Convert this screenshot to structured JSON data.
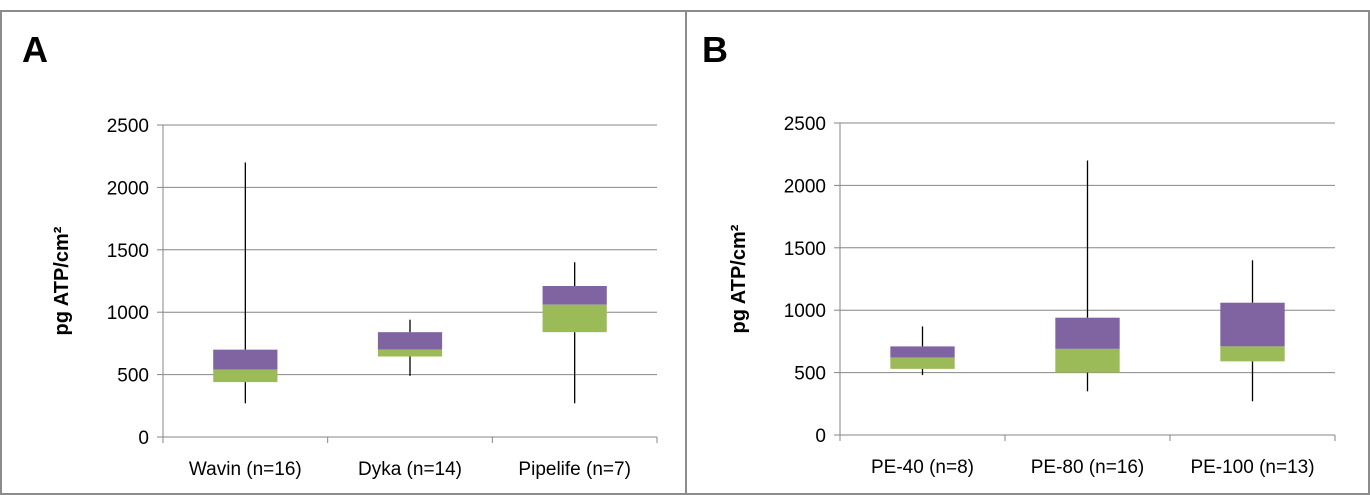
{
  "chart_data": [
    {
      "panel_label": "A",
      "type": "box",
      "ylabel": "pg ATP/cm²",
      "ylim": [
        0,
        2500
      ],
      "yticks": [
        0,
        500,
        1000,
        1500,
        2000,
        2500
      ],
      "grid": true,
      "categories": [
        "Wavin (n=16)",
        "Dyka (n=14)",
        "Pipelife (n=7)"
      ],
      "boxes": [
        {
          "min": 270,
          "q1": 440,
          "median": 540,
          "q3": 700,
          "max": 2200
        },
        {
          "min": 490,
          "q1": 645,
          "median": 700,
          "q3": 840,
          "max": 940
        },
        {
          "min": 270,
          "q1": 840,
          "median": 1060,
          "q3": 1210,
          "max": 1400
        }
      ]
    },
    {
      "panel_label": "B",
      "type": "box",
      "ylabel": "pg ATP/cm²",
      "ylim": [
        0,
        2500
      ],
      "yticks": [
        0,
        500,
        1000,
        1500,
        2000,
        2500
      ],
      "grid": true,
      "categories": [
        "PE-40 (n=8)",
        "PE-80 (n=16)",
        "PE-100 (n=13)"
      ],
      "boxes": [
        {
          "min": 480,
          "q1": 530,
          "median": 620,
          "q3": 710,
          "max": 870
        },
        {
          "min": 350,
          "q1": 500,
          "median": 690,
          "q3": 940,
          "max": 2200
        },
        {
          "min": 270,
          "q1": 590,
          "median": 710,
          "q3": 1060,
          "max": 1400
        }
      ]
    }
  ],
  "colors": {
    "upper_box": "#8064a2",
    "lower_box": "#9bbb59",
    "whisker": "#000000",
    "grid": "#868686",
    "axis": "#868686",
    "panel_border": "#8c8c8c"
  }
}
